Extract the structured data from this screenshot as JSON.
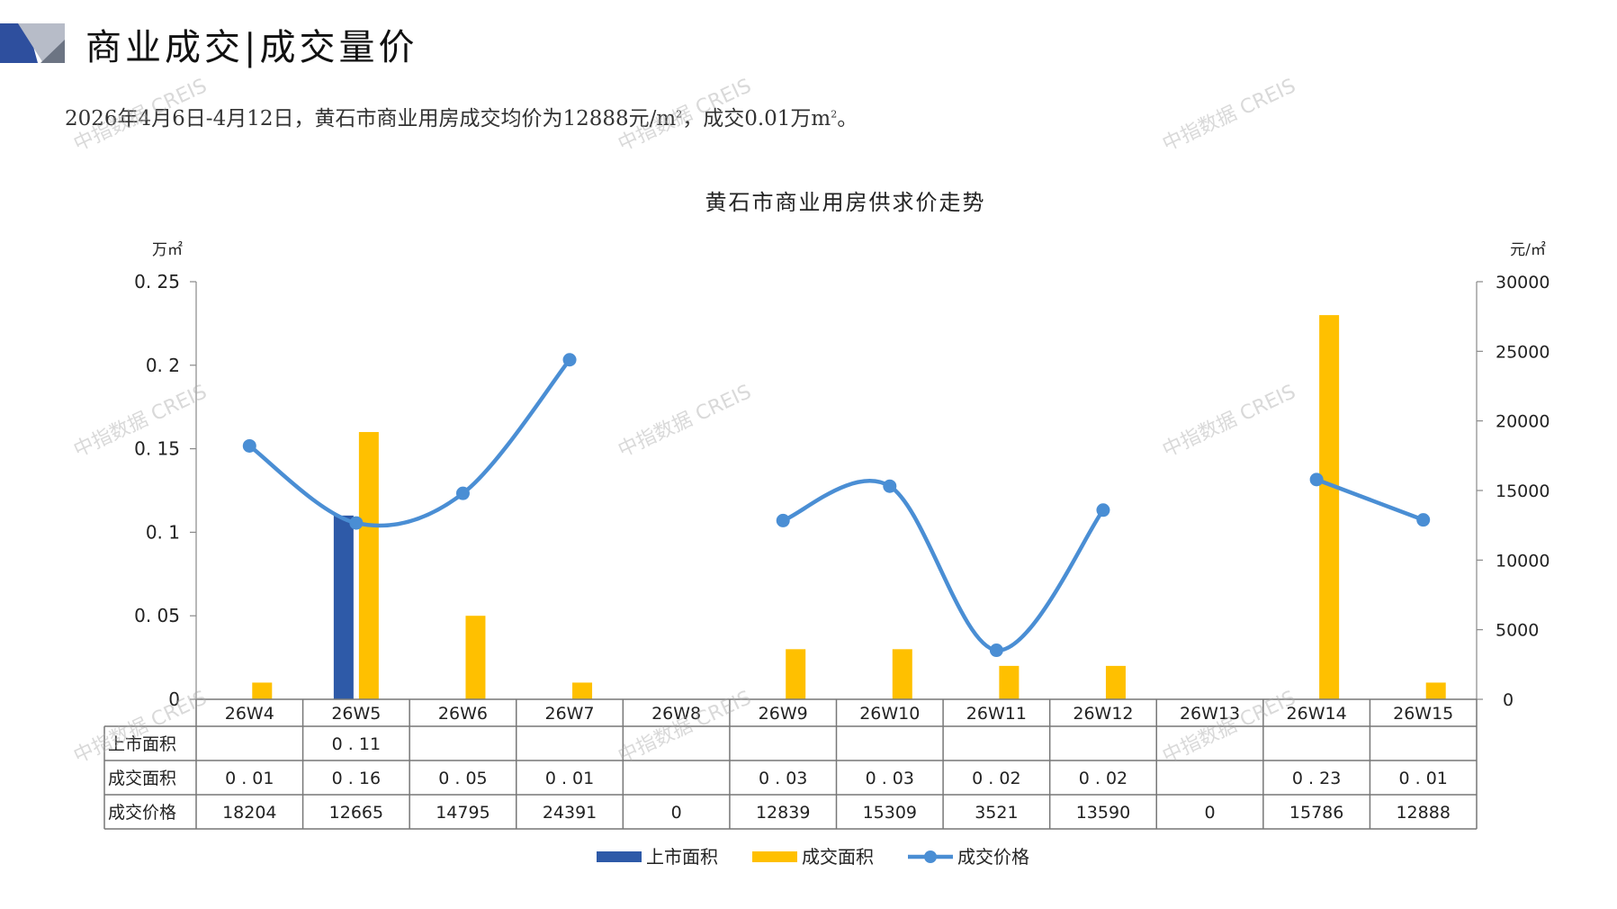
{
  "header": {
    "title": "商业成交|成交量价",
    "subtitle_prefix": "2026年4月6日-4月12日，黄石市商业用房成交均价为12888元/m",
    "subtitle_sup": "2",
    "subtitle_mid": "，成交0.01万m",
    "subtitle_sup2": "2",
    "subtitle_end": "。"
  },
  "watermark": "中指数据 CREIS",
  "chart_data": {
    "type": "bar",
    "title": "黄石市商业用房供求价走势",
    "y_left_unit": "万㎡",
    "y_right_unit": "元/㎡",
    "y_left_ticks": [
      "0",
      "0.05",
      "0.1",
      "0.15",
      "0.2",
      "0.25"
    ],
    "y_right_ticks": [
      "0",
      "5000",
      "10000",
      "15000",
      "20000",
      "25000",
      "30000"
    ],
    "y_left_lim": [
      0,
      0.25
    ],
    "y_right_lim": [
      0,
      30000
    ],
    "categories": [
      "26W4",
      "26W5",
      "26W6",
      "26W7",
      "26W8",
      "26W9",
      "26W10",
      "26W11",
      "26W12",
      "26W13",
      "26W14",
      "26W15"
    ],
    "series": [
      {
        "name": "上市面积",
        "kind": "bar",
        "axis": "left",
        "color": "#2E5AA8",
        "values": [
          null,
          0.11,
          null,
          null,
          null,
          null,
          null,
          null,
          null,
          null,
          null,
          null
        ]
      },
      {
        "name": "成交面积",
        "kind": "bar",
        "axis": "left",
        "color": "#FFC000",
        "values": [
          0.01,
          0.16,
          0.05,
          0.01,
          null,
          0.03,
          0.03,
          0.02,
          0.02,
          null,
          0.23,
          0.01
        ]
      },
      {
        "name": "成交价格",
        "kind": "line",
        "axis": "right",
        "color": "#4A8ED4",
        "values": [
          18204,
          12665,
          14795,
          24391,
          0,
          12839,
          15309,
          3521,
          13590,
          0,
          15786,
          12888
        ]
      }
    ],
    "table_rows": [
      {
        "label": "上市面积",
        "cells": [
          "",
          "0.11",
          "",
          "",
          "",
          "",
          "",
          "",
          "",
          "",
          "",
          ""
        ]
      },
      {
        "label": "成交面积",
        "cells": [
          "0.01",
          "0.16",
          "0.05",
          "0.01",
          "",
          "0.03",
          "0.03",
          "0.02",
          "0.02",
          "",
          "0.23",
          "0.01"
        ]
      },
      {
        "label": "成交价格",
        "cells": [
          "18204",
          "12665",
          "14795",
          "24391",
          "0",
          "12839",
          "15309",
          "3521",
          "13590",
          "0",
          "15786",
          "12888"
        ]
      }
    ],
    "legend_position": "bottom",
    "grid": false
  }
}
